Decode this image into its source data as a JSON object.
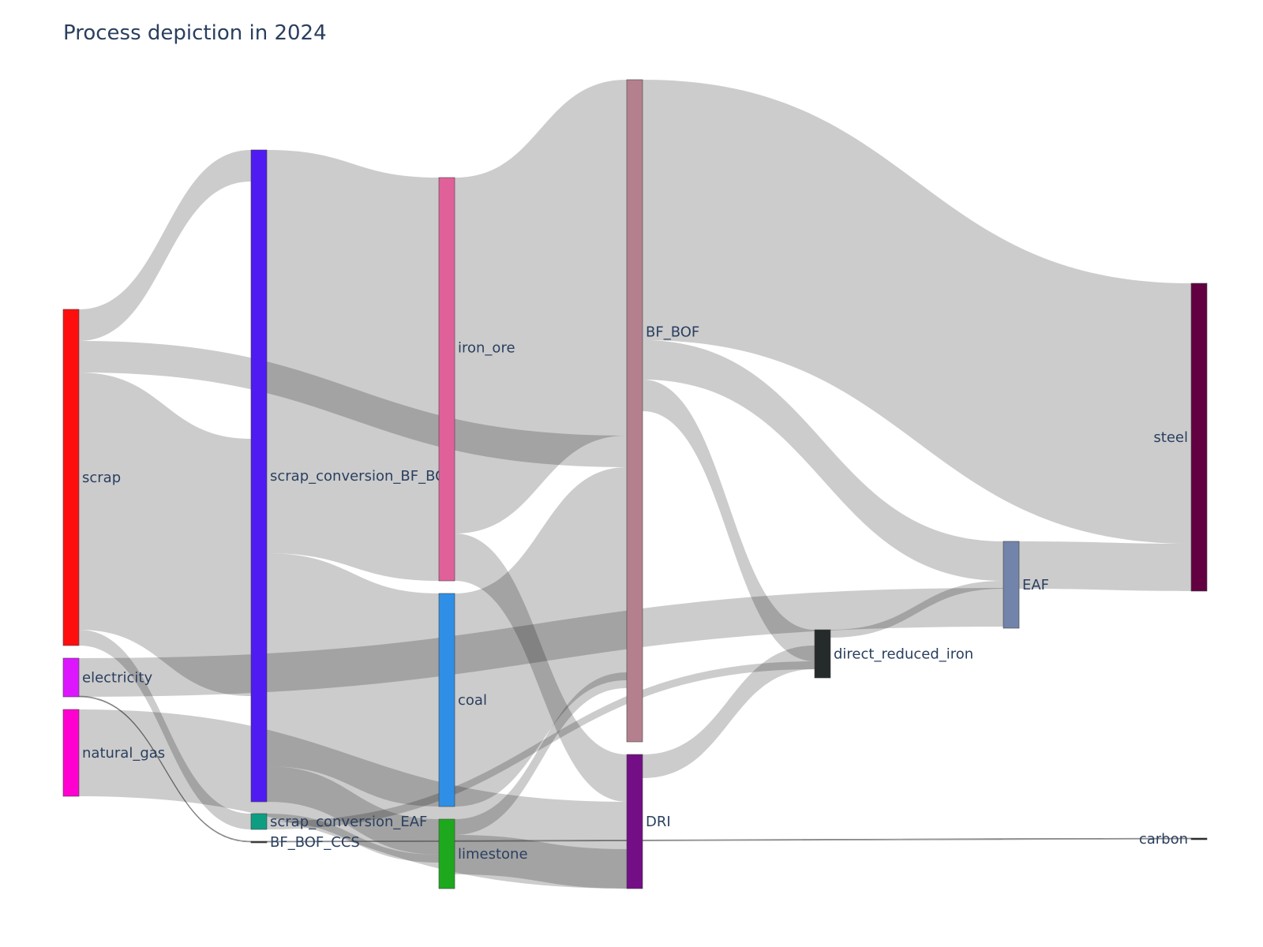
{
  "chart_data": {
    "type": "sankey",
    "title": "Process depiction in 2024",
    "nodes": [
      {
        "id": "scrap",
        "label": "scrap",
        "color": "#ff0e0e"
      },
      {
        "id": "electricity",
        "label": "electricity",
        "color": "#dc17ff"
      },
      {
        "id": "natural_gas",
        "label": "natural_gas",
        "color": "#ff00d0"
      },
      {
        "id": "scrap_conversion_BF_BOF",
        "label": "scrap_conversion_BF_BOF",
        "color": "#4f1bf2"
      },
      {
        "id": "scrap_conversion_EAF",
        "label": "scrap_conversion_EAF",
        "color": "#0d9e82"
      },
      {
        "id": "BF_BOF_CCS",
        "label": "BF_BOF_CCS",
        "color": "#3a3a3a"
      },
      {
        "id": "iron_ore",
        "label": "iron_ore",
        "color": "#e0619a"
      },
      {
        "id": "coal",
        "label": "coal",
        "color": "#2f8fe6"
      },
      {
        "id": "limestone",
        "label": "limestone",
        "color": "#1ea81e"
      },
      {
        "id": "BF_BOF",
        "label": "BF_BOF",
        "color": "#b4808e"
      },
      {
        "id": "DRI",
        "label": "DRI",
        "color": "#740e86"
      },
      {
        "id": "direct_reduced_iron",
        "label": "direct_reduced_iron",
        "color": "#252a2a"
      },
      {
        "id": "EAF",
        "label": "EAF",
        "color": "#7384aa"
      },
      {
        "id": "steel",
        "label": "steel",
        "color": "#620042"
      },
      {
        "id": "carbon",
        "label": "carbon",
        "color": "#222222"
      }
    ],
    "links": [
      {
        "source": "scrap",
        "target": "scrap_conversion_BF_BOF",
        "value": 0.45
      },
      {
        "source": "scrap",
        "target": "BF_BOF",
        "value": 0.45
      },
      {
        "source": "scrap",
        "target": "scrap_conversion_BF_BOF",
        "value": 3.95
      },
      {
        "source": "scrap",
        "target": "scrap_conversion_EAF",
        "value": 0.2
      },
      {
        "source": "electricity",
        "target": "EAF",
        "value": 0.5
      },
      {
        "source": "electricity",
        "target": "BF_BOF_CCS",
        "value": 0.02
      },
      {
        "source": "natural_gas",
        "target": "DRI",
        "value": 1.1
      },
      {
        "source": "scrap_conversion_BF_BOF",
        "target": "iron_ore",
        "value": 5.0
      },
      {
        "source": "scrap_conversion_BF_BOF",
        "target": "coal",
        "value": 2.6
      },
      {
        "source": "scrap_conversion_BF_BOF",
        "target": "limestone",
        "value": 0.45
      },
      {
        "source": "scrap_conversion_EAF",
        "target": "limestone",
        "value": 0.1
      },
      {
        "source": "scrap_conversion_EAF",
        "target": "direct_reduced_iron",
        "value": 0.1
      },
      {
        "source": "BF_BOF_CCS",
        "target": "carbon",
        "value": 0.02
      },
      {
        "source": "iron_ore",
        "target": "BF_BOF",
        "value": 4.4
      },
      {
        "source": "iron_ore",
        "target": "DRI",
        "value": 0.6
      },
      {
        "source": "coal",
        "target": "BF_BOF",
        "value": 2.6
      },
      {
        "source": "limestone",
        "target": "BF_BOF",
        "value": 0.2
      },
      {
        "source": "limestone",
        "target": "DRI",
        "value": 0.5
      },
      {
        "source": "BF_BOF",
        "target": "steel",
        "value": 3.3
      },
      {
        "source": "BF_BOF",
        "target": "EAF",
        "value": 0.5
      },
      {
        "source": "BF_BOF",
        "target": "direct_reduced_iron",
        "value": 0.6
      },
      {
        "source": "DRI",
        "target": "direct_reduced_iron",
        "value": 0.3
      },
      {
        "source": "direct_reduced_iron",
        "target": "EAF",
        "value": 0.1
      },
      {
        "source": "EAF",
        "target": "steel",
        "value": 0.6
      }
    ]
  }
}
